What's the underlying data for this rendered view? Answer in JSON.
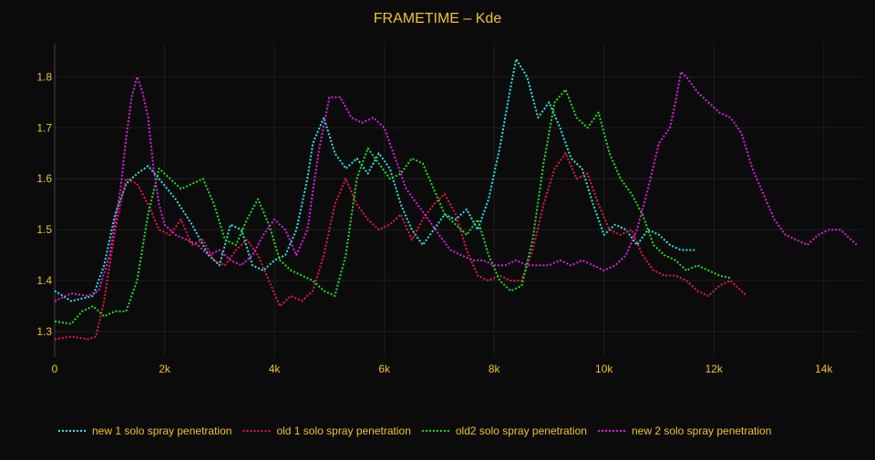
{
  "chart_data": {
    "type": "line",
    "title": "FRAMETIME – Kde",
    "xlabel": "",
    "ylabel": "",
    "xlim": [
      0,
      14700
    ],
    "ylim": [
      1.25,
      1.865
    ],
    "x_ticks": [
      {
        "value": 0,
        "label": "0"
      },
      {
        "value": 2000,
        "label": "2k"
      },
      {
        "value": 4000,
        "label": "4k"
      },
      {
        "value": 6000,
        "label": "6k"
      },
      {
        "value": 8000,
        "label": "8k"
      },
      {
        "value": 10000,
        "label": "10k"
      },
      {
        "value": 12000,
        "label": "12k"
      },
      {
        "value": 14000,
        "label": "14k"
      }
    ],
    "y_ticks": [
      {
        "value": 1.3,
        "label": "1.3"
      },
      {
        "value": 1.4,
        "label": "1.4"
      },
      {
        "value": 1.5,
        "label": "1.5"
      },
      {
        "value": 1.6,
        "label": "1.6"
      },
      {
        "value": 1.7,
        "label": "1.7"
      },
      {
        "value": 1.8,
        "label": "1.8"
      }
    ],
    "grid": true,
    "legend_position": "bottom",
    "colors": {
      "background": "#0b0b0b",
      "text": "#f2c12e",
      "grid": "#1f1f1f",
      "axis": "#444444"
    },
    "series": [
      {
        "name": "new 1 solo spray penetration",
        "color": "#2ee6e6",
        "x": [
          0,
          300,
          700,
          900,
          1100,
          1300,
          1500,
          1700,
          1900,
          2200,
          2500,
          2800,
          3000,
          3200,
          3400,
          3600,
          3800,
          4000,
          4200,
          4400,
          4600,
          4700,
          4900,
          5100,
          5300,
          5500,
          5700,
          5900,
          6100,
          6300,
          6500,
          6700,
          6900,
          7100,
          7300,
          7500,
          7700,
          7900,
          8100,
          8300,
          8400,
          8600,
          8800,
          9000,
          9200,
          9400,
          9600,
          9800,
          10000,
          10200,
          10400,
          10600,
          10800,
          11000,
          11200,
          11400,
          11650
        ],
        "y": [
          1.38,
          1.36,
          1.37,
          1.43,
          1.53,
          1.59,
          1.61,
          1.625,
          1.6,
          1.56,
          1.51,
          1.45,
          1.43,
          1.51,
          1.5,
          1.43,
          1.42,
          1.44,
          1.45,
          1.5,
          1.6,
          1.67,
          1.72,
          1.65,
          1.62,
          1.64,
          1.61,
          1.65,
          1.62,
          1.55,
          1.5,
          1.47,
          1.5,
          1.53,
          1.52,
          1.54,
          1.5,
          1.56,
          1.66,
          1.78,
          1.835,
          1.8,
          1.72,
          1.75,
          1.7,
          1.64,
          1.62,
          1.55,
          1.49,
          1.51,
          1.5,
          1.47,
          1.5,
          1.49,
          1.47,
          1.46,
          1.46
        ]
      },
      {
        "name": "old 1 solo spray penetration",
        "color": "#e6194b",
        "x": [
          0,
          300,
          600,
          750,
          900,
          1100,
          1300,
          1500,
          1700,
          1900,
          2100,
          2300,
          2500,
          2700,
          2900,
          3100,
          3300,
          3500,
          3700,
          3900,
          4100,
          4300,
          4500,
          4700,
          4900,
          5100,
          5300,
          5500,
          5700,
          5900,
          6100,
          6300,
          6500,
          6700,
          6900,
          7100,
          7300,
          7500,
          7700,
          7900,
          8100,
          8300,
          8500,
          8700,
          8900,
          9100,
          9300,
          9500,
          9700,
          9900,
          10100,
          10300,
          10500,
          10700,
          10900,
          11100,
          11300,
          11500,
          11700,
          11900,
          12100,
          12300,
          12600
        ],
        "y": [
          1.285,
          1.29,
          1.285,
          1.29,
          1.36,
          1.5,
          1.6,
          1.59,
          1.55,
          1.5,
          1.49,
          1.52,
          1.47,
          1.48,
          1.44,
          1.43,
          1.46,
          1.48,
          1.45,
          1.4,
          1.35,
          1.37,
          1.36,
          1.38,
          1.45,
          1.55,
          1.6,
          1.55,
          1.52,
          1.5,
          1.51,
          1.53,
          1.48,
          1.52,
          1.55,
          1.57,
          1.53,
          1.46,
          1.41,
          1.4,
          1.41,
          1.4,
          1.4,
          1.46,
          1.55,
          1.62,
          1.65,
          1.6,
          1.61,
          1.55,
          1.5,
          1.49,
          1.5,
          1.45,
          1.42,
          1.41,
          1.41,
          1.4,
          1.38,
          1.37,
          1.39,
          1.4,
          1.37
        ]
      },
      {
        "name": "old2 solo spray penetration",
        "color": "#22dd22",
        "x": [
          0,
          300,
          500,
          700,
          900,
          1100,
          1300,
          1500,
          1700,
          1900,
          2100,
          2300,
          2500,
          2700,
          2900,
          3100,
          3300,
          3500,
          3700,
          3900,
          4100,
          4300,
          4500,
          4700,
          4900,
          5100,
          5300,
          5500,
          5700,
          5900,
          6100,
          6300,
          6500,
          6700,
          6900,
          7100,
          7300,
          7500,
          7700,
          7900,
          8100,
          8300,
          8500,
          8700,
          8900,
          9100,
          9300,
          9500,
          9700,
          9900,
          10100,
          10300,
          10500,
          10700,
          10900,
          11100,
          11300,
          11500,
          11700,
          11900,
          12100,
          12300
        ],
        "y": [
          1.32,
          1.315,
          1.34,
          1.35,
          1.33,
          1.34,
          1.34,
          1.4,
          1.53,
          1.62,
          1.6,
          1.58,
          1.59,
          1.6,
          1.55,
          1.48,
          1.47,
          1.52,
          1.56,
          1.51,
          1.44,
          1.42,
          1.41,
          1.4,
          1.38,
          1.37,
          1.45,
          1.6,
          1.66,
          1.63,
          1.6,
          1.61,
          1.64,
          1.63,
          1.58,
          1.53,
          1.51,
          1.49,
          1.52,
          1.45,
          1.4,
          1.38,
          1.39,
          1.48,
          1.63,
          1.75,
          1.775,
          1.72,
          1.7,
          1.73,
          1.65,
          1.6,
          1.57,
          1.53,
          1.47,
          1.45,
          1.44,
          1.42,
          1.43,
          1.42,
          1.41,
          1.405
        ]
      },
      {
        "name": "new 2 solo spray penetration",
        "color": "#e01ee0",
        "x": [
          0,
          300,
          600,
          800,
          1000,
          1200,
          1300,
          1400,
          1500,
          1600,
          1700,
          1800,
          1900,
          2000,
          2200,
          2400,
          2600,
          2800,
          3000,
          3200,
          3400,
          3600,
          3800,
          4000,
          4200,
          4400,
          4600,
          4800,
          5000,
          5200,
          5400,
          5600,
          5800,
          6000,
          6200,
          6400,
          6600,
          6800,
          7000,
          7200,
          7400,
          7600,
          7800,
          8000,
          8200,
          8400,
          8600,
          8800,
          9000,
          9200,
          9400,
          9600,
          9800,
          10000,
          10200,
          10400,
          10600,
          10800,
          11000,
          11200,
          11300,
          11400,
          11500,
          11700,
          11900,
          12100,
          12300,
          12500,
          12700,
          12900,
          13100,
          13300,
          13500,
          13700,
          13900,
          14100,
          14300,
          14600
        ],
        "y": [
          1.36,
          1.375,
          1.37,
          1.38,
          1.45,
          1.58,
          1.68,
          1.76,
          1.8,
          1.77,
          1.72,
          1.62,
          1.55,
          1.51,
          1.49,
          1.48,
          1.47,
          1.45,
          1.46,
          1.44,
          1.43,
          1.45,
          1.49,
          1.52,
          1.5,
          1.45,
          1.5,
          1.65,
          1.76,
          1.76,
          1.72,
          1.71,
          1.72,
          1.7,
          1.64,
          1.58,
          1.55,
          1.52,
          1.49,
          1.46,
          1.45,
          1.44,
          1.44,
          1.43,
          1.43,
          1.44,
          1.43,
          1.43,
          1.43,
          1.44,
          1.43,
          1.44,
          1.43,
          1.42,
          1.43,
          1.45,
          1.5,
          1.58,
          1.67,
          1.7,
          1.75,
          1.81,
          1.8,
          1.77,
          1.75,
          1.73,
          1.72,
          1.69,
          1.62,
          1.57,
          1.52,
          1.49,
          1.48,
          1.47,
          1.49,
          1.5,
          1.5,
          1.47
        ]
      }
    ]
  }
}
